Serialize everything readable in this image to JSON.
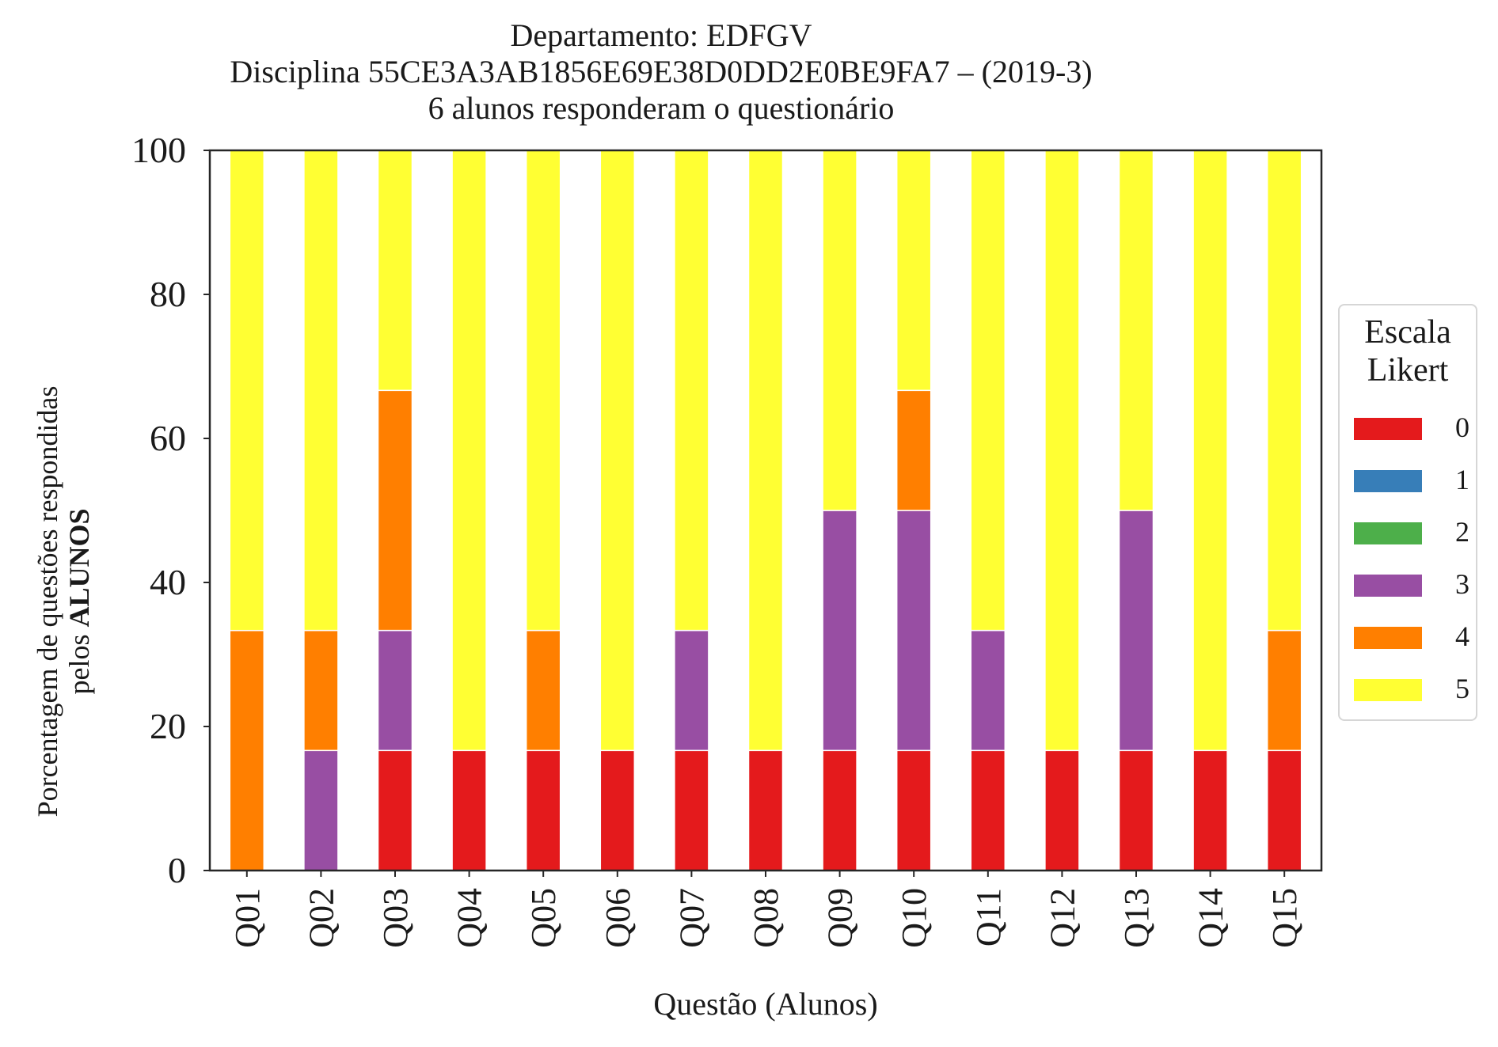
{
  "chart_data": {
    "type": "bar",
    "stacked": true,
    "title_lines": [
      "Departamento: EDFGV",
      "Disciplina 55CE3A3AB1856E69E38D0DD2E0BE9FA7 – (2019-3)",
      "6 alunos responderam o questionário"
    ],
    "xlabel": "Questão (Alunos)",
    "ylabel_line1": "Porcentagem de questões respondidas",
    "ylabel_line2_prefix": "pelos ",
    "ylabel_line2_bold": "ALUNOS",
    "ylim": [
      0,
      100
    ],
    "yticks": [
      "0",
      "20",
      "40",
      "60",
      "80",
      "100"
    ],
    "grid": false,
    "legend_position": "right",
    "legend_title_lines": [
      "Escala",
      "Likert"
    ],
    "categories": [
      "Q01",
      "Q02",
      "Q03",
      "Q04",
      "Q05",
      "Q06",
      "Q07",
      "Q08",
      "Q09",
      "Q10",
      "Q11",
      "Q12",
      "Q13",
      "Q14",
      "Q15"
    ],
    "series": [
      {
        "name": "0",
        "color": "#e41a1c",
        "values": [
          0,
          0,
          16.67,
          16.67,
          16.67,
          16.67,
          16.67,
          16.67,
          16.67,
          16.67,
          16.67,
          16.67,
          16.67,
          16.67,
          16.67
        ]
      },
      {
        "name": "1",
        "color": "#377eb8",
        "values": [
          0,
          0,
          0,
          0,
          0,
          0,
          0,
          0,
          0,
          0,
          0,
          0,
          0,
          0,
          0
        ]
      },
      {
        "name": "2",
        "color": "#4daf4a",
        "values": [
          0,
          0,
          0,
          0,
          0,
          0,
          0,
          0,
          0,
          0,
          0,
          0,
          0,
          0,
          0
        ]
      },
      {
        "name": "3",
        "color": "#984ea3",
        "values": [
          0,
          16.67,
          16.67,
          0,
          0,
          0,
          16.67,
          0,
          33.33,
          33.33,
          16.67,
          0,
          33.33,
          0,
          0
        ]
      },
      {
        "name": "4",
        "color": "#ff7f00",
        "values": [
          33.33,
          16.67,
          33.33,
          0,
          16.67,
          0,
          0,
          0,
          0,
          16.67,
          0,
          0,
          0,
          0,
          16.67
        ]
      },
      {
        "name": "5",
        "color": "#ffff33",
        "values": [
          66.67,
          66.67,
          33.33,
          83.33,
          66.67,
          83.33,
          66.67,
          83.33,
          50,
          33.33,
          66.67,
          83.33,
          50,
          83.33,
          66.67
        ]
      }
    ]
  }
}
